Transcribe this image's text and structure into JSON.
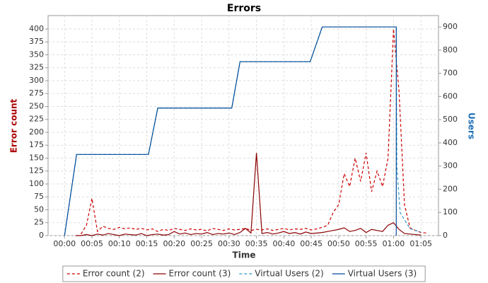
{
  "chart_data": {
    "type": "line",
    "title": "Errors",
    "x_label": "Time",
    "y_label": "Error count",
    "y2_label": "Users",
    "x": [
      0,
      1,
      2,
      3,
      4,
      5,
      6,
      7,
      8,
      9,
      10,
      11,
      12,
      13,
      14,
      15,
      16,
      17,
      18,
      19,
      20,
      21,
      22,
      23,
      24,
      25,
      26,
      27,
      28,
      29,
      30,
      31,
      32,
      33,
      34,
      35,
      36,
      37,
      38,
      39,
      40,
      41,
      42,
      43,
      44,
      45,
      46,
      47,
      48,
      49,
      50,
      51,
      52,
      53,
      54,
      55,
      56,
      57,
      58,
      59,
      60,
      61,
      62,
      63,
      64,
      65,
      66
    ],
    "xlim": [
      -3,
      68.2
    ],
    "xticks": [
      {
        "value": 0,
        "label": "00:00"
      },
      {
        "value": 5,
        "label": "00:05"
      },
      {
        "value": 10,
        "label": "00:10"
      },
      {
        "value": 15,
        "label": "00:15"
      },
      {
        "value": 20,
        "label": "00:20"
      },
      {
        "value": 25,
        "label": "00:25"
      },
      {
        "value": 30,
        "label": "00:30"
      },
      {
        "value": 35,
        "label": "00:35"
      },
      {
        "value": 40,
        "label": "00:40"
      },
      {
        "value": 45,
        "label": "00:45"
      },
      {
        "value": 50,
        "label": "00:50"
      },
      {
        "value": 55,
        "label": "00:55"
      },
      {
        "value": 60,
        "label": "01:00"
      },
      {
        "value": 65,
        "label": "01:05"
      }
    ],
    "ylim": [
      0,
      426
    ],
    "yticks": [
      0,
      25,
      50,
      75,
      100,
      125,
      150,
      175,
      200,
      225,
      250,
      275,
      300,
      325,
      350,
      375,
      400
    ],
    "y2lim": [
      0,
      949
    ],
    "y2ticks": [
      0,
      100,
      200,
      300,
      400,
      500,
      600,
      700,
      800,
      900
    ],
    "grid": true,
    "legend": "bottom",
    "series": [
      {
        "name": "Error count (2)",
        "color": "#cc0000",
        "line_style": "dashed",
        "values": [
          null,
          null,
          null,
          3,
          20,
          72,
          8,
          18,
          14,
          12,
          16,
          13,
          15,
          12,
          14,
          11,
          13,
          8,
          12,
          10,
          14,
          12,
          10,
          13,
          11,
          12,
          9,
          14,
          12,
          10,
          13,
          11,
          12,
          14,
          10,
          12,
          11,
          13,
          10,
          12,
          14,
          11,
          13,
          12,
          14,
          11,
          13,
          16,
          20,
          45,
          60,
          120,
          95,
          150,
          105,
          160,
          85,
          125,
          95,
          150,
          400,
          280,
          60,
          15,
          10,
          6,
          5
        ]
      },
      {
        "name": "Error count (3)",
        "color": "#8b0000",
        "line_style": "solid",
        "values": [
          null,
          null,
          0,
          0,
          2,
          0,
          3,
          1,
          4,
          2,
          0,
          3,
          2,
          1,
          4,
          0,
          2,
          3,
          1,
          2,
          8,
          3,
          5,
          2,
          4,
          3,
          6,
          2,
          4,
          3,
          5,
          2,
          6,
          14,
          5,
          160,
          4,
          6,
          3,
          5,
          8,
          4,
          6,
          3,
          7,
          4,
          5,
          6,
          8,
          10,
          12,
          15,
          8,
          10,
          14,
          6,
          12,
          10,
          8,
          20,
          25,
          12,
          4,
          3,
          2,
          1,
          null
        ]
      },
      {
        "name": "Virtual Users (2)",
        "color": "#3399cc",
        "line_style": "dashed",
        "axis": "y2",
        "x": [
          0,
          2.2,
          15.3,
          17,
          30.5,
          32,
          44.8,
          47,
          60.5,
          60.6,
          61.2,
          61.7,
          63,
          65
        ],
        "values": [
          0,
          350,
          350,
          550,
          550,
          750,
          750,
          900,
          900,
          300,
          100,
          80,
          30,
          15
        ]
      },
      {
        "name": "Virtual Users (3)",
        "color": "#004c99",
        "line_style": "solid",
        "axis": "y2",
        "x": [
          0,
          2.2,
          15.3,
          17,
          30.5,
          32,
          44.8,
          47,
          60.5,
          60.5
        ],
        "values": [
          0,
          350,
          350,
          550,
          550,
          750,
          750,
          900,
          900,
          0
        ]
      }
    ]
  }
}
